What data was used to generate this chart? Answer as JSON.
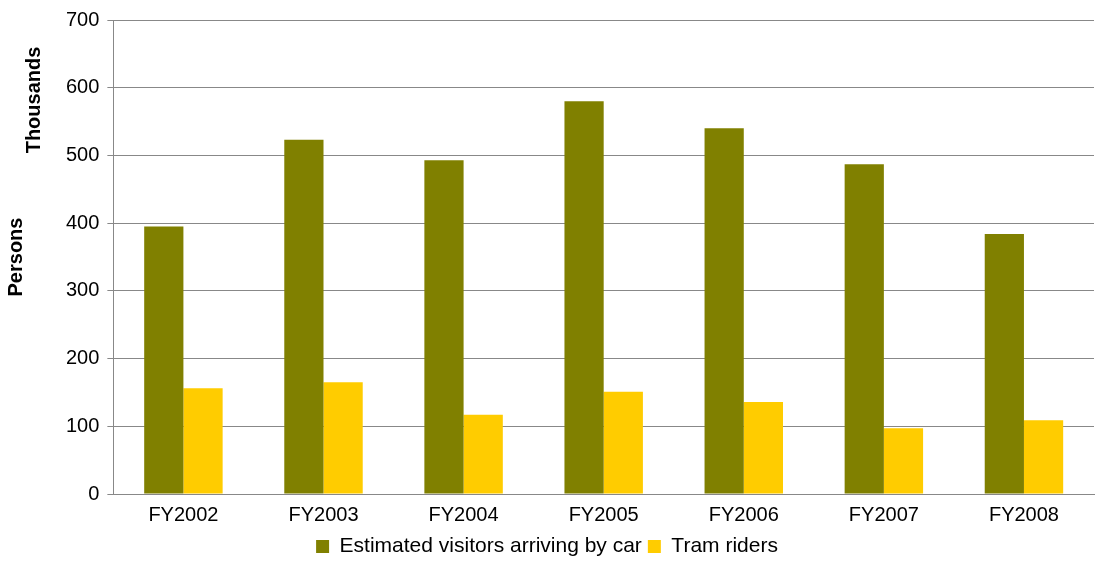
{
  "chart_data": {
    "type": "bar",
    "ylabel": "Persons",
    "annotations": [
      "Thousands"
    ],
    "categories": [
      "FY2002",
      "FY2003",
      "FY2004",
      "FY2005",
      "FY2006",
      "FY2007",
      "FY2008"
    ],
    "series": [
      {
        "name": "Estimated visitors arriving by car",
        "color": "#808000",
        "values": [
          395,
          523,
          493,
          580,
          540,
          487,
          384
        ]
      },
      {
        "name": "Tram riders",
        "color": "#ffcc00",
        "values": [
          156,
          165,
          117,
          151,
          136,
          97,
          109
        ]
      }
    ],
    "ylim": [
      0,
      700
    ],
    "yticks": [
      0,
      100,
      200,
      300,
      400,
      500,
      600,
      700
    ],
    "grid": "y",
    "legend": "bottom"
  }
}
